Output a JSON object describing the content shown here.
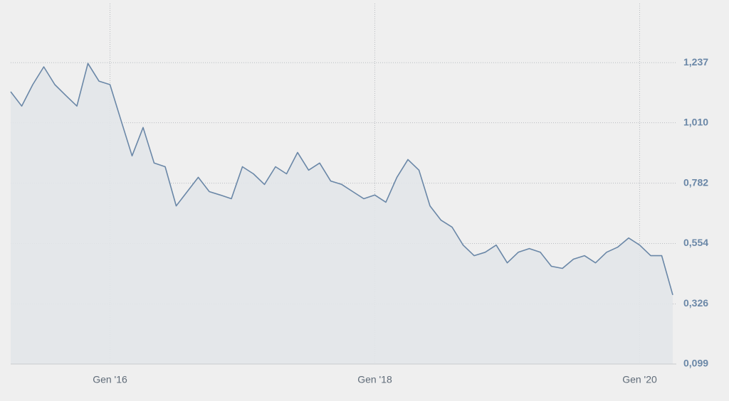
{
  "chart_data": {
    "type": "area",
    "x": [
      "2015-04",
      "2015-05",
      "2015-06",
      "2015-07",
      "2015-08",
      "2015-09",
      "2015-10",
      "2015-11",
      "2015-12",
      "2016-01",
      "2016-02",
      "2016-03",
      "2016-04",
      "2016-05",
      "2016-06",
      "2016-07",
      "2016-08",
      "2016-09",
      "2016-10",
      "2016-11",
      "2016-12",
      "2017-01",
      "2017-02",
      "2017-03",
      "2017-04",
      "2017-05",
      "2017-06",
      "2017-07",
      "2017-08",
      "2017-09",
      "2017-10",
      "2017-11",
      "2017-12",
      "2018-01",
      "2018-02",
      "2018-03",
      "2018-04",
      "2018-05",
      "2018-06",
      "2018-07",
      "2018-08",
      "2018-09",
      "2018-10",
      "2018-11",
      "2018-12",
      "2019-01",
      "2019-02",
      "2019-03",
      "2019-04",
      "2019-05",
      "2019-06",
      "2019-07",
      "2019-08",
      "2019-09",
      "2019-10",
      "2019-11",
      "2019-12",
      "2020-01",
      "2020-02",
      "2020-03",
      "2020-04"
    ],
    "values": [
      1.127,
      1.073,
      1.154,
      1.221,
      1.154,
      1.113,
      1.073,
      1.234,
      1.167,
      1.154,
      1.019,
      0.885,
      0.992,
      0.858,
      0.844,
      0.696,
      0.75,
      0.804,
      0.75,
      0.737,
      0.723,
      0.844,
      0.817,
      0.777,
      0.844,
      0.817,
      0.898,
      0.831,
      0.858,
      0.79,
      0.777,
      0.75,
      0.723,
      0.737,
      0.71,
      0.804,
      0.871,
      0.831,
      0.696,
      0.642,
      0.616,
      0.548,
      0.508,
      0.521,
      0.548,
      0.481,
      0.521,
      0.535,
      0.521,
      0.468,
      0.46,
      0.495,
      0.508,
      0.481,
      0.521,
      0.54,
      0.575,
      0.548,
      0.508,
      0.508,
      0.36
    ],
    "color": "#6a87a7",
    "fill": "#e2e5e9",
    "xlim": [
      "2015-04",
      "2020-04"
    ],
    "xticks": [
      {
        "value": "2016-01",
        "label": "Gen '16"
      },
      {
        "value": "2018-01",
        "label": "Gen '18"
      },
      {
        "value": "2020-01",
        "label": "Gen '20"
      }
    ],
    "ylim": [
      0.099,
      1.46
    ],
    "yticks": [
      {
        "value": 0.099,
        "label": "0,099"
      },
      {
        "value": 0.326,
        "label": "0,326"
      },
      {
        "value": 0.554,
        "label": "0,554"
      },
      {
        "value": 0.782,
        "label": "0,782"
      },
      {
        "value": 1.01,
        "label": "1,010"
      },
      {
        "value": 1.237,
        "label": "1,237"
      }
    ],
    "grid": true
  }
}
